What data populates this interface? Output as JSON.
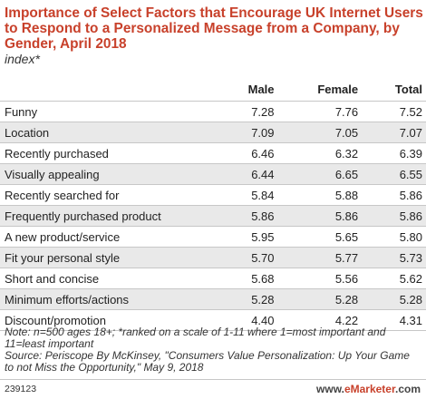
{
  "title": "Importance of Select Factors that Encourage UK Internet Users to Respond to a Personalized Message from a Company, by Gender, April 2018",
  "subtitle": "index*",
  "chart_data": {
    "type": "table",
    "columns": [
      "Male",
      "Female",
      "Total"
    ],
    "rows": [
      {
        "label": "Funny",
        "values": [
          "7.28",
          "7.76",
          "7.52"
        ]
      },
      {
        "label": "Location",
        "values": [
          "7.09",
          "7.05",
          "7.07"
        ]
      },
      {
        "label": "Recently purchased",
        "values": [
          "6.46",
          "6.32",
          "6.39"
        ]
      },
      {
        "label": "Visually appealing",
        "values": [
          "6.44",
          "6.65",
          "6.55"
        ]
      },
      {
        "label": "Recently searched for",
        "values": [
          "5.84",
          "5.88",
          "5.86"
        ]
      },
      {
        "label": "Frequently purchased product",
        "values": [
          "5.86",
          "5.86",
          "5.86"
        ]
      },
      {
        "label": "A new product/service",
        "values": [
          "5.95",
          "5.65",
          "5.80"
        ]
      },
      {
        "label": "Fit your personal style",
        "values": [
          "5.70",
          "5.77",
          "5.73"
        ]
      },
      {
        "label": "Short and concise",
        "values": [
          "5.68",
          "5.56",
          "5.62"
        ]
      },
      {
        "label": "Minimum efforts/actions",
        "values": [
          "5.28",
          "5.28",
          "5.28"
        ]
      },
      {
        "label": "Discount/promotion",
        "values": [
          "4.40",
          "4.22",
          "4.31"
        ]
      }
    ]
  },
  "notes": {
    "note": "Note: n=500 ages 18+; *ranked on a scale of 1-11 where 1=most important and 11=least important",
    "source": "Source: Periscope By McKinsey, \"Consumers Value Personalization: Up Your Game to not Miss the Opportunity,\" May 9, 2018"
  },
  "footer": {
    "id": "239123",
    "brand_prefix": "www.",
    "brand_name": "eMarketer",
    "brand_suffix": ".com"
  },
  "colors": {
    "title": "#c8412b",
    "stripe": "#e9e9e9",
    "rule": "#c7c7c7"
  }
}
